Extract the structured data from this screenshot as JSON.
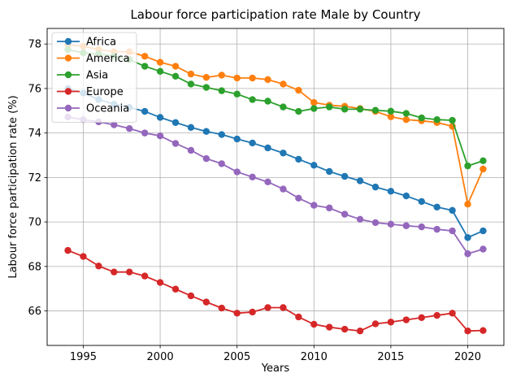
{
  "chart_data": {
    "type": "line",
    "title": "Labour force participation rate Male by Country",
    "xlabel": "Years",
    "ylabel": "Labour force participation rate (%)",
    "xlim": [
      1992.65,
      2022.35
    ],
    "ylim": [
      64.45,
      78.7
    ],
    "xticks": [
      1995,
      2000,
      2005,
      2010,
      2015,
      2020
    ],
    "yticks": [
      66,
      68,
      70,
      72,
      74,
      76,
      78
    ],
    "grid": true,
    "legend_position": "upper-left",
    "x": [
      1994,
      1995,
      1996,
      1997,
      1998,
      1999,
      2000,
      2001,
      2002,
      2003,
      2004,
      2005,
      2006,
      2007,
      2008,
      2009,
      2010,
      2011,
      2012,
      2013,
      2014,
      2015,
      2016,
      2017,
      2018,
      2019,
      2020,
      2021
    ],
    "series": [
      {
        "name": "Africa",
        "color": "#1f77b4",
        "values": [
          76.0,
          75.8,
          75.5,
          75.3,
          75.15,
          74.97,
          74.7,
          74.47,
          74.25,
          74.07,
          73.93,
          73.73,
          73.55,
          73.33,
          73.1,
          72.82,
          72.55,
          72.27,
          72.05,
          71.85,
          71.57,
          71.38,
          71.17,
          70.92,
          70.67,
          70.52,
          69.3,
          69.6
        ]
      },
      {
        "name": "America",
        "color": "#ff7f0e",
        "values": [
          77.95,
          77.9,
          77.75,
          77.65,
          77.65,
          77.45,
          77.18,
          77.0,
          76.65,
          76.5,
          76.6,
          76.47,
          76.47,
          76.4,
          76.2,
          75.92,
          75.37,
          75.25,
          75.2,
          75.1,
          74.97,
          74.73,
          74.6,
          74.55,
          74.47,
          74.3,
          70.8,
          72.38
        ]
      },
      {
        "name": "Asia",
        "color": "#2ca02c",
        "values": [
          77.75,
          77.6,
          77.55,
          77.45,
          77.3,
          77.0,
          76.77,
          76.55,
          76.2,
          76.05,
          75.9,
          75.75,
          75.5,
          75.43,
          75.17,
          74.97,
          75.1,
          75.17,
          75.07,
          75.07,
          75.02,
          74.98,
          74.88,
          74.68,
          74.6,
          74.57,
          72.52,
          72.75
        ]
      },
      {
        "name": "Europe",
        "color": "#d62728",
        "values": [
          68.72,
          68.45,
          68.02,
          67.75,
          67.75,
          67.57,
          67.28,
          66.98,
          66.68,
          66.4,
          66.13,
          65.9,
          65.95,
          66.15,
          66.15,
          65.73,
          65.4,
          65.27,
          65.18,
          65.1,
          65.42,
          65.5,
          65.6,
          65.7,
          65.8,
          65.9,
          65.1,
          65.12
        ]
      },
      {
        "name": "Oceania",
        "color": "#9467bd",
        "values": [
          74.72,
          74.6,
          74.5,
          74.37,
          74.2,
          74.0,
          73.87,
          73.53,
          73.22,
          72.85,
          72.62,
          72.25,
          72.02,
          71.8,
          71.48,
          71.07,
          70.75,
          70.63,
          70.35,
          70.12,
          69.97,
          69.9,
          69.83,
          69.78,
          69.67,
          69.6,
          68.57,
          68.78
        ]
      }
    ]
  }
}
